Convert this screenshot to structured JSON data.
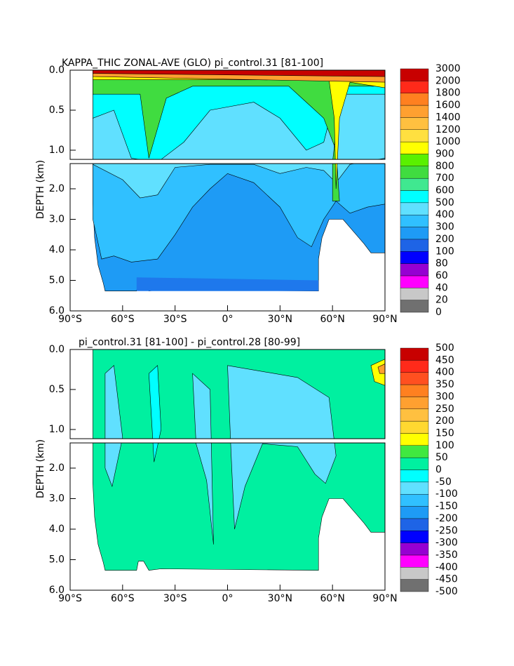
{
  "chart_data": [
    {
      "type": "contour",
      "title": "KAPPA_THIC ZONAL-AVE (GLO) pi_control.31 [81-100]",
      "ylabel": "DEPTH (km)",
      "xlim": [
        -90,
        90
      ],
      "xticks": [
        {
          "value": -90,
          "label": "90°S"
        },
        {
          "value": -60,
          "label": "60°S"
        },
        {
          "value": -30,
          "label": "30°S"
        },
        {
          "value": 0,
          "label": "0°"
        },
        {
          "value": 30,
          "label": "30°N"
        },
        {
          "value": 60,
          "label": "60°N"
        },
        {
          "value": 90,
          "label": "90°N"
        }
      ],
      "ylim": [
        0,
        6
      ],
      "ybreak": 1.15,
      "yticks": [
        {
          "value": 0,
          "label": "0.0"
        },
        {
          "value": 0.5,
          "label": "0.5"
        },
        {
          "value": 1,
          "label": "1.0"
        },
        {
          "value": 2,
          "label": "2.0"
        },
        {
          "value": 3,
          "label": "3.0"
        },
        {
          "value": 4,
          "label": "4.0"
        },
        {
          "value": 5,
          "label": "5.0"
        },
        {
          "value": 6,
          "label": "6.0"
        }
      ],
      "colorbar": {
        "levels": [
          0,
          20,
          40,
          60,
          80,
          100,
          200,
          300,
          400,
          500,
          600,
          700,
          800,
          900,
          1000,
          1200,
          1400,
          1600,
          1800,
          2000,
          3000
        ],
        "colors": [
          "#707070",
          "#c8c8c8",
          "#ff00ff",
          "#9600d2",
          "#0000ff",
          "#1e64e6",
          "#1e9bf5",
          "#30c0ff",
          "#60e0ff",
          "#00ffff",
          "#40e890",
          "#40dc40",
          "#5af000",
          "#ffff00",
          "#ffe040",
          "#ffc040",
          "#ffa030",
          "#ff8020",
          "#ff2a1a",
          "#c80000"
        ]
      }
    },
    {
      "type": "contour",
      "title": "pi_control.31 [81-100] - pi_control.28 [80-99]",
      "ylabel": "DEPTH (km)",
      "xlim": [
        -90,
        90
      ],
      "xticks": [
        {
          "value": -90,
          "label": "90°S"
        },
        {
          "value": -60,
          "label": "60°S"
        },
        {
          "value": -30,
          "label": "30°S"
        },
        {
          "value": 0,
          "label": "0°"
        },
        {
          "value": 30,
          "label": "30°N"
        },
        {
          "value": 60,
          "label": "60°N"
        },
        {
          "value": 90,
          "label": "90°N"
        }
      ],
      "ylim": [
        0,
        6
      ],
      "ybreak": 1.15,
      "yticks": [
        {
          "value": 0,
          "label": "0.0"
        },
        {
          "value": 0.5,
          "label": "0.5"
        },
        {
          "value": 1,
          "label": "1.0"
        },
        {
          "value": 2,
          "label": "2.0"
        },
        {
          "value": 3,
          "label": "3.0"
        },
        {
          "value": 4,
          "label": "4.0"
        },
        {
          "value": 5,
          "label": "5.0"
        },
        {
          "value": 6,
          "label": "6.0"
        }
      ],
      "colorbar": {
        "levels": [
          -500,
          -450,
          -400,
          -350,
          -300,
          -250,
          -200,
          -150,
          -100,
          -50,
          0,
          50,
          100,
          150,
          200,
          250,
          300,
          350,
          400,
          450,
          500
        ],
        "colors": [
          "#707070",
          "#c8c8c8",
          "#ff00ff",
          "#9600d2",
          "#0000ff",
          "#1e64e6",
          "#1e9bf5",
          "#30c0ff",
          "#60e0ff",
          "#00ffff",
          "#00f0a0",
          "#40e840",
          "#ffff00",
          "#ffd830",
          "#ffc040",
          "#ffa030",
          "#ff8020",
          "#ff5020",
          "#ff2a1a",
          "#c80000"
        ]
      }
    }
  ]
}
